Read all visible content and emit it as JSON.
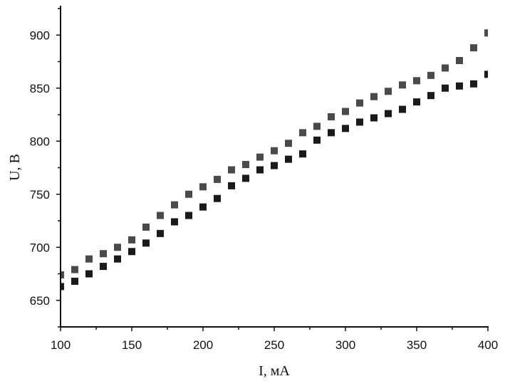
{
  "chart_data": {
    "type": "scatter",
    "xlabel": "I, мА",
    "ylabel": "U, В",
    "xlim": [
      100,
      400
    ],
    "ylim": [
      625,
      925
    ],
    "x_ticks": [
      "100",
      "150",
      "200",
      "250",
      "300",
      "350",
      "400"
    ],
    "y_ticks": [
      "650",
      "700",
      "750",
      "800",
      "850",
      "900"
    ],
    "grid": false,
    "legend": "none",
    "x": [
      100,
      110,
      120,
      130,
      140,
      150,
      160,
      170,
      180,
      190,
      200,
      210,
      220,
      230,
      240,
      250,
      260,
      270,
      280,
      290,
      300,
      310,
      320,
      330,
      340,
      350,
      360,
      370,
      380,
      390,
      400
    ],
    "series": [
      {
        "color": "#4a4a4a",
        "marker": "square",
        "values": [
          674,
          679,
          689,
          694,
          700,
          707,
          719,
          730,
          740,
          750,
          757,
          764,
          773,
          778,
          785,
          791,
          798,
          808,
          814,
          823,
          828,
          836,
          842,
          847,
          853,
          857,
          862,
          869,
          876,
          888,
          902
        ]
      },
      {
        "color": "#1a1a1a",
        "marker": "square",
        "values": [
          663,
          668,
          675,
          682,
          689,
          696,
          704,
          713,
          724,
          730,
          738,
          746,
          758,
          765,
          773,
          777,
          783,
          788,
          801,
          808,
          812,
          818,
          822,
          826,
          830,
          837,
          843,
          850,
          852,
          854,
          863
        ]
      }
    ]
  }
}
